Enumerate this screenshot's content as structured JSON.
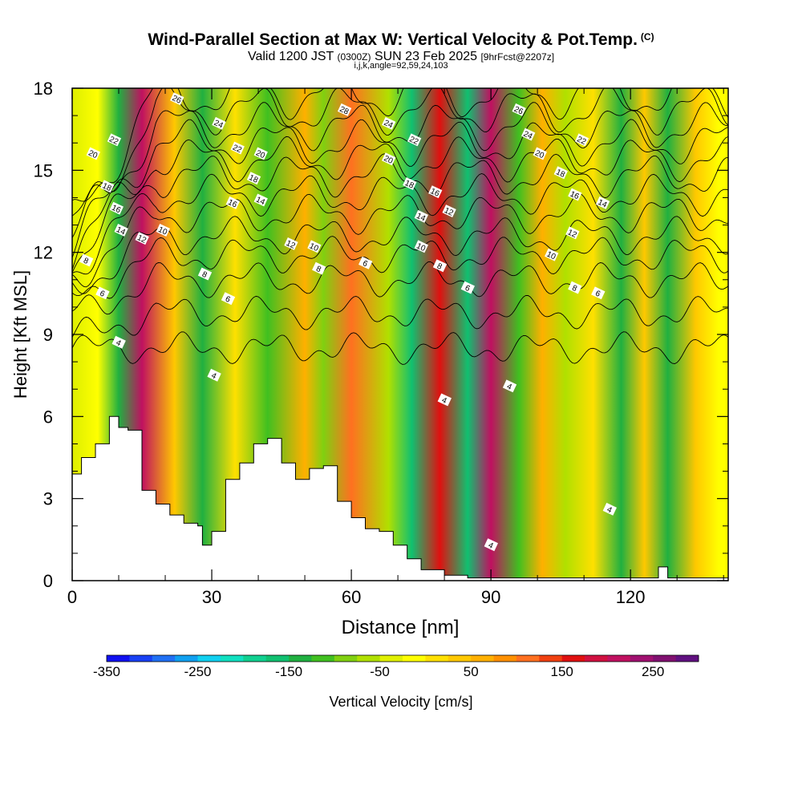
{
  "header": {
    "title": "Wind-Parallel Section at Max W: Vertical Velocity & Pot.Temp.",
    "title_tag": "(C)",
    "subtitle_main": "Valid 1200 JST",
    "subtitle_utc": "(0300Z)",
    "subtitle_date": "SUN 23 Feb 2025",
    "subtitle_fcst": "[9hrFcst@2207z]",
    "subsub": "i,j,k,angle=92,59,24,103"
  },
  "chart_data": {
    "type": "heatmap",
    "title": "Wind-Parallel Section at Max W: Vertical Velocity & Pot.Temp.",
    "xlabel": "Distance [nm]",
    "ylabel": "Height [Kft MSL]",
    "xlim": [
      0,
      141
    ],
    "ylim": [
      0,
      18
    ],
    "xticks": [
      0,
      30,
      60,
      90,
      120
    ],
    "yticks": [
      0,
      3,
      6,
      9,
      12,
      15,
      18
    ],
    "colorbar": {
      "label": "Vertical Velocity [cm/s]",
      "ticks": [
        -350,
        -250,
        -150,
        -50,
        50,
        150,
        250
      ],
      "levels": [
        -350,
        -325,
        -300,
        -275,
        -250,
        -225,
        -200,
        -175,
        -150,
        -125,
        -100,
        -75,
        -50,
        -25,
        0,
        25,
        50,
        75,
        100,
        125,
        150,
        175,
        200,
        225,
        250,
        275,
        300
      ],
      "colors": [
        "#1010f0",
        "#1840f4",
        "#2070f4",
        "#10a0f0",
        "#10d0f0",
        "#10e0c0",
        "#10d090",
        "#10c070",
        "#20b040",
        "#40c020",
        "#80d010",
        "#b0e000",
        "#e0f000",
        "#ffff00",
        "#ffe000",
        "#ffc800",
        "#ffb000",
        "#ff9000",
        "#ff7020",
        "#f04010",
        "#e01010",
        "#d01040",
        "#c01060",
        "#a01070",
        "#801070",
        "#601080"
      ]
    },
    "vertical_velocity_bands": [
      {
        "x": 0.5,
        "w": -50
      },
      {
        "x": 5.5,
        "w": -25
      },
      {
        "x": 10,
        "w": -150
      },
      {
        "x": 15,
        "w": 220
      },
      {
        "x": 22,
        "w": 40
      },
      {
        "x": 28,
        "w": -130
      },
      {
        "x": 35,
        "w": 20
      },
      {
        "x": 42,
        "w": -120
      },
      {
        "x": 50,
        "w": 60
      },
      {
        "x": 54,
        "w": -80
      },
      {
        "x": 60,
        "w": 110
      },
      {
        "x": 68,
        "w": -60
      },
      {
        "x": 73,
        "w": -170
      },
      {
        "x": 79,
        "w": 170
      },
      {
        "x": 85,
        "w": -160
      },
      {
        "x": 90,
        "w": 200
      },
      {
        "x": 96,
        "w": -110
      },
      {
        "x": 101,
        "w": 50
      },
      {
        "x": 106,
        "w": -70
      },
      {
        "x": 112,
        "w": 20
      },
      {
        "x": 118,
        "w": -140
      },
      {
        "x": 123,
        "w": 40
      },
      {
        "x": 128,
        "w": -130
      },
      {
        "x": 134,
        "w": 30
      },
      {
        "x": 139,
        "w": -20
      }
    ],
    "terrain": {
      "x": [
        0,
        2,
        5,
        8,
        10,
        12,
        15,
        18,
        21,
        24,
        27,
        28,
        30,
        33,
        36,
        39,
        42,
        45,
        48,
        51,
        54,
        57,
        60,
        63,
        66,
        69,
        72,
        75,
        80,
        85,
        90,
        100,
        110,
        120,
        125,
        126,
        128,
        141
      ],
      "height": [
        3.9,
        4.5,
        5.0,
        6.0,
        5.6,
        5.5,
        3.3,
        2.8,
        2.4,
        2.1,
        2.0,
        1.3,
        1.8,
        3.7,
        4.3,
        5.0,
        5.2,
        4.3,
        3.7,
        4.1,
        4.2,
        2.9,
        2.3,
        1.9,
        1.8,
        1.3,
        0.8,
        0.4,
        0.2,
        0.1,
        0.1,
        0.1,
        0.1,
        0.1,
        0.1,
        0.5,
        0.1,
        0.1
      ]
    },
    "theta_contours": [
      {
        "label": "4",
        "base_height": 8.5
      },
      {
        "label": "6",
        "base_height": 9.8
      },
      {
        "label": "8",
        "base_height": 11.0
      },
      {
        "label": "10",
        "base_height": 11.9
      },
      {
        "label": "12",
        "base_height": 12.6
      },
      {
        "label": "14",
        "base_height": 13.4
      },
      {
        "label": "16",
        "base_height": 14.1
      },
      {
        "label": "18",
        "base_height": 14.8
      },
      {
        "label": "20",
        "base_height": 15.4
      },
      {
        "label": "22",
        "base_height": 16.0
      },
      {
        "label": "24",
        "base_height": 16.6
      },
      {
        "label": "26",
        "base_height": 17.2
      },
      {
        "label": "28",
        "base_height": 17.8
      }
    ],
    "contour_labels": [
      {
        "text": "26",
        "x": 22.5,
        "y": 17.6
      },
      {
        "text": "24",
        "x": 31.5,
        "y": 16.7
      },
      {
        "text": "22",
        "x": 9,
        "y": 16.1
      },
      {
        "text": "20",
        "x": 4.5,
        "y": 15.6
      },
      {
        "text": "18",
        "x": 7.5,
        "y": 14.4
      },
      {
        "text": "16",
        "x": 9.5,
        "y": 13.6
      },
      {
        "text": "14",
        "x": 10.5,
        "y": 12.8
      },
      {
        "text": "12",
        "x": 15,
        "y": 12.5
      },
      {
        "text": "10",
        "x": 19.5,
        "y": 12.8
      },
      {
        "text": "8",
        "x": 3,
        "y": 11.7
      },
      {
        "text": "6",
        "x": 6.5,
        "y": 10.5
      },
      {
        "text": "4",
        "x": 10,
        "y": 8.7
      },
      {
        "text": "8",
        "x": 28.5,
        "y": 11.2
      },
      {
        "text": "6",
        "x": 33.5,
        "y": 10.3
      },
      {
        "text": "4",
        "x": 30.5,
        "y": 7.5
      },
      {
        "text": "22",
        "x": 35.5,
        "y": 15.8
      },
      {
        "text": "20",
        "x": 40.5,
        "y": 15.6
      },
      {
        "text": "18",
        "x": 39,
        "y": 14.7
      },
      {
        "text": "16",
        "x": 34.5,
        "y": 13.8
      },
      {
        "text": "14",
        "x": 40.5,
        "y": 13.9
      },
      {
        "text": "12",
        "x": 47,
        "y": 12.3
      },
      {
        "text": "10",
        "x": 52,
        "y": 12.2
      },
      {
        "text": "8",
        "x": 53,
        "y": 11.4
      },
      {
        "text": "28",
        "x": 58.5,
        "y": 17.2
      },
      {
        "text": "24",
        "x": 68,
        "y": 16.7
      },
      {
        "text": "22",
        "x": 73.5,
        "y": 16.1
      },
      {
        "text": "20",
        "x": 68,
        "y": 15.4
      },
      {
        "text": "18",
        "x": 72.5,
        "y": 14.5
      },
      {
        "text": "16",
        "x": 78,
        "y": 14.2
      },
      {
        "text": "14",
        "x": 75,
        "y": 13.3
      },
      {
        "text": "12",
        "x": 81,
        "y": 13.5
      },
      {
        "text": "10",
        "x": 75,
        "y": 12.2
      },
      {
        "text": "8",
        "x": 79,
        "y": 11.5
      },
      {
        "text": "6",
        "x": 63,
        "y": 11.6
      },
      {
        "text": "6",
        "x": 85,
        "y": 10.7
      },
      {
        "text": "4",
        "x": 80,
        "y": 6.6
      },
      {
        "text": "4",
        "x": 94,
        "y": 7.1
      },
      {
        "text": "4",
        "x": 90,
        "y": 1.3
      },
      {
        "text": "26",
        "x": 96,
        "y": 17.2
      },
      {
        "text": "24",
        "x": 98,
        "y": 16.3
      },
      {
        "text": "22",
        "x": 109.5,
        "y": 16.1
      },
      {
        "text": "20",
        "x": 100.5,
        "y": 15.6
      },
      {
        "text": "18",
        "x": 105,
        "y": 14.9
      },
      {
        "text": "16",
        "x": 108,
        "y": 14.1
      },
      {
        "text": "14",
        "x": 114,
        "y": 13.8
      },
      {
        "text": "12",
        "x": 107.5,
        "y": 12.7
      },
      {
        "text": "10",
        "x": 103,
        "y": 11.9
      },
      {
        "text": "8",
        "x": 108,
        "y": 10.7
      },
      {
        "text": "6",
        "x": 113,
        "y": 10.5
      },
      {
        "text": "4",
        "x": 115.5,
        "y": 2.6
      }
    ]
  }
}
